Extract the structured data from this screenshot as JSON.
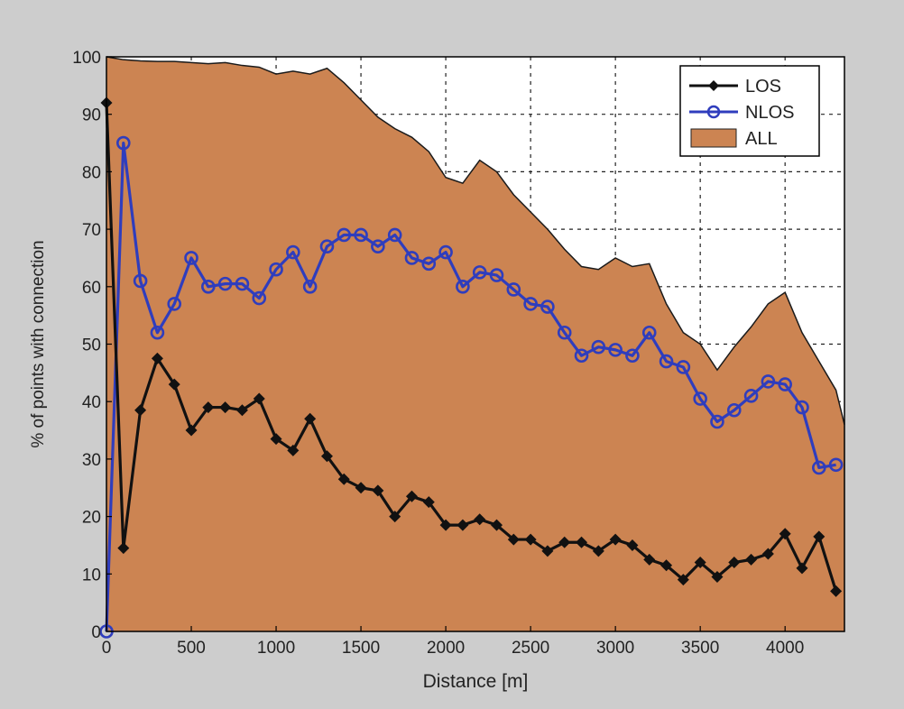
{
  "chart_data": {
    "type": "line",
    "title": "",
    "xlabel": "Distance [m]",
    "ylabel": "% of points with connection",
    "xlim": [
      0,
      4350
    ],
    "ylim": [
      0,
      100
    ],
    "xticks": [
      0,
      500,
      1000,
      1500,
      2000,
      2500,
      3000,
      3500,
      4000
    ],
    "yticks": [
      0,
      10,
      20,
      30,
      40,
      50,
      60,
      70,
      80,
      90,
      100
    ],
    "grid": true,
    "legend_position": "top-right",
    "series": [
      {
        "name": "ALL",
        "kind": "area",
        "color": "#cc8452",
        "x": [
          0,
          100,
          200,
          300,
          400,
          500,
          600,
          700,
          800,
          900,
          1000,
          1100,
          1200,
          1300,
          1400,
          1500,
          1600,
          1700,
          1800,
          1900,
          2000,
          2100,
          2200,
          2300,
          2400,
          2500,
          2600,
          2700,
          2800,
          2900,
          3000,
          3100,
          3200,
          3300,
          3400,
          3500,
          3600,
          3700,
          3800,
          3900,
          4000,
          4100,
          4200,
          4300,
          4350
        ],
        "y": [
          100,
          99.5,
          99.3,
          99.2,
          99.2,
          99,
          98.8,
          99,
          98.5,
          98.2,
          97,
          97.5,
          97,
          98,
          95.5,
          92.5,
          89.5,
          87.5,
          86,
          83.5,
          79,
          78,
          82,
          80,
          76,
          73,
          70,
          66.5,
          63.5,
          63,
          65,
          63.5,
          64,
          57,
          52,
          50,
          45.5,
          49.5,
          53,
          57,
          59,
          52,
          47,
          42,
          36
        ]
      },
      {
        "name": "NLOS",
        "kind": "line",
        "marker": "circle",
        "color": "#2f3dbd",
        "x": [
          0,
          100,
          200,
          300,
          400,
          500,
          600,
          700,
          800,
          900,
          1000,
          1100,
          1200,
          1300,
          1400,
          1500,
          1600,
          1700,
          1800,
          1900,
          2000,
          2100,
          2200,
          2300,
          2400,
          2500,
          2600,
          2700,
          2800,
          2900,
          3000,
          3100,
          3200,
          3300,
          3400,
          3500,
          3600,
          3700,
          3800,
          3900,
          4000,
          4100,
          4200,
          4300
        ],
        "y": [
          0,
          85,
          61,
          52,
          57,
          65,
          60,
          60.5,
          60.5,
          58,
          63,
          66,
          60,
          67,
          69,
          69,
          67,
          69,
          65,
          64,
          66,
          60,
          62.5,
          62,
          59.5,
          57,
          56.5,
          52,
          48,
          49.5,
          49,
          48,
          52,
          47,
          46,
          40.5,
          36.5,
          38.5,
          41,
          43.5,
          43,
          39,
          28.5,
          29
        ]
      },
      {
        "name": "LOS",
        "kind": "line",
        "marker": "diamond",
        "color": "#111111",
        "x": [
          0,
          100,
          200,
          300,
          400,
          500,
          600,
          700,
          800,
          900,
          1000,
          1100,
          1200,
          1300,
          1400,
          1500,
          1600,
          1700,
          1800,
          1900,
          2000,
          2100,
          2200,
          2300,
          2400,
          2500,
          2600,
          2700,
          2800,
          2900,
          3000,
          3100,
          3200,
          3300,
          3400,
          3500,
          3600,
          3700,
          3800,
          3900,
          4000,
          4100,
          4200,
          4300
        ],
        "y": [
          92,
          14.5,
          38.5,
          47.5,
          43,
          35,
          39,
          39,
          38.5,
          40.5,
          33.5,
          31.5,
          37,
          30.5,
          26.5,
          25,
          24.5,
          20,
          23.5,
          22.5,
          18.5,
          18.5,
          19.5,
          18.5,
          16,
          16,
          14,
          15.5,
          15.5,
          14,
          16,
          15,
          12.5,
          11.5,
          9,
          12,
          9.5,
          12,
          12.5,
          13.5,
          17,
          11,
          16.5,
          7
        ]
      }
    ],
    "legend": [
      "LOS",
      "NLOS",
      "ALL"
    ]
  }
}
